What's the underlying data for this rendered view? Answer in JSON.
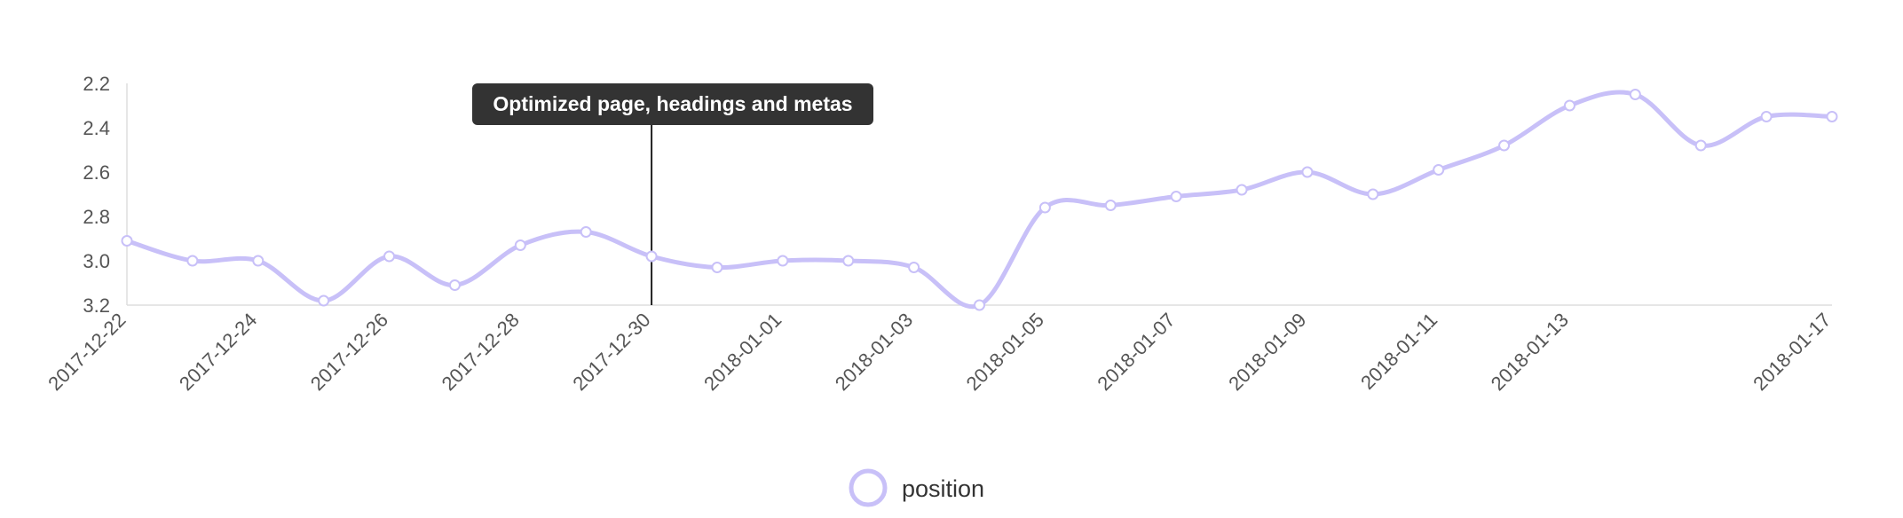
{
  "colors": {
    "series": "#c8c0f8",
    "axis": "#dddddd",
    "annotation_bg": "#333333",
    "annotation_line": "#222222"
  },
  "chart_data": {
    "type": "line",
    "title": "",
    "xlabel": "",
    "ylabel": "",
    "y_inverted": true,
    "ylim": [
      3.2,
      2.2
    ],
    "y_ticks": [
      "2.2",
      "2.4",
      "2.6",
      "2.8",
      "3.0",
      "3.2"
    ],
    "x_tick_labels": [
      "2017-12-22",
      "2017-12-24",
      "2017-12-26",
      "2017-12-28",
      "2017-12-30",
      "2018-01-01",
      "2018-01-03",
      "2018-01-05",
      "2018-01-07",
      "2018-01-09",
      "2018-01-11",
      "2018-01-13",
      "2018-01-17"
    ],
    "grid": false,
    "legend_position": "bottom-center",
    "x": [
      "2017-12-22",
      "2017-12-23",
      "2017-12-24",
      "2017-12-25",
      "2017-12-26",
      "2017-12-27",
      "2017-12-28",
      "2017-12-29",
      "2017-12-30",
      "2017-12-31",
      "2018-01-01",
      "2018-01-02",
      "2018-01-03",
      "2018-01-04",
      "2018-01-05",
      "2018-01-06",
      "2018-01-07",
      "2018-01-08",
      "2018-01-09",
      "2018-01-10",
      "2018-01-11",
      "2018-01-12",
      "2018-01-13",
      "2018-01-14",
      "2018-01-15",
      "2018-01-16",
      "2018-01-17"
    ],
    "series": [
      {
        "name": "position",
        "values": [
          2.91,
          3.0,
          3.0,
          3.18,
          2.98,
          3.11,
          2.93,
          2.87,
          2.98,
          3.03,
          3.0,
          3.0,
          3.03,
          3.2,
          2.76,
          2.75,
          2.71,
          2.68,
          2.6,
          2.7,
          2.59,
          2.48,
          2.3,
          2.25,
          2.48,
          2.35,
          2.35
        ]
      }
    ],
    "annotations": [
      {
        "x": "2017-12-30",
        "text": "Optimized page, headings and metas"
      }
    ]
  }
}
